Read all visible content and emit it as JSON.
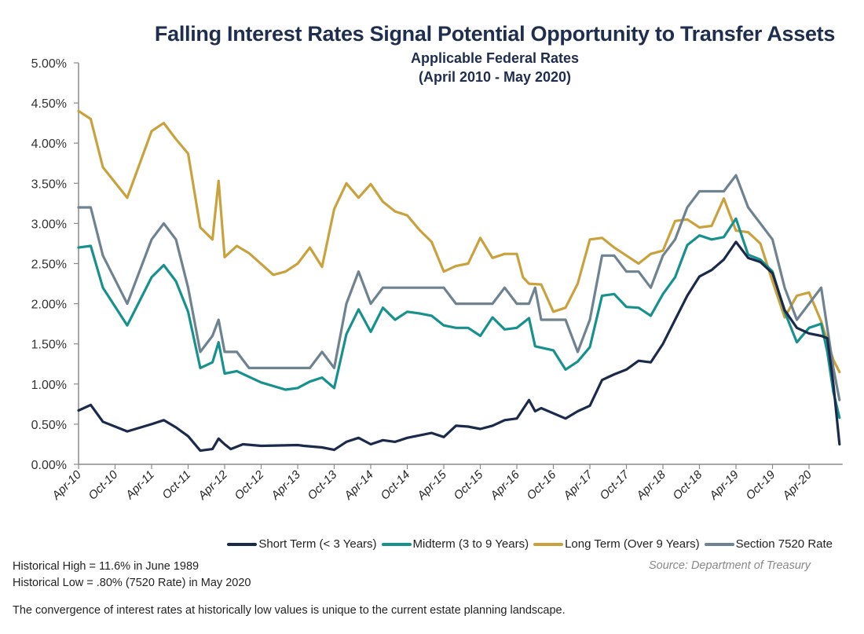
{
  "header": {
    "title": "Falling Interest Rates Signal Potential Opportunity to Transfer Assets",
    "subtitle": "Applicable Federal Rates",
    "date_range": "(April 2010 - May  2020)"
  },
  "notes": {
    "historical_high": "Historical High = 11.6% in  June 1989",
    "historical_low": "Historical Low = .80% (7520 Rate) in May 2020",
    "source": "Source: Department of Treasury",
    "footer": "The convergence of interest rates at historically low values is unique to the current estate planning landscape."
  },
  "chart_data": {
    "type": "line",
    "title": "Applicable Federal Rates",
    "xlabel": "",
    "ylabel": "",
    "ylim": [
      0,
      5
    ],
    "yticks": [
      "0.00%",
      "0.50%",
      "1.00%",
      "1.50%",
      "2.00%",
      "2.50%",
      "3.00%",
      "3.50%",
      "4.00%",
      "4.50%",
      "5.00%"
    ],
    "ytick_values": [
      0,
      0.5,
      1,
      1.5,
      2,
      2.5,
      3,
      3.5,
      4,
      4.5,
      5
    ],
    "xticks": [
      "Apr-10",
      "Oct-10",
      "Apr-11",
      "Oct-11",
      "Apr-12",
      "Oct-12",
      "Apr-13",
      "Oct-13",
      "Apr-14",
      "Oct-14",
      "Apr-15",
      "Oct-15",
      "Apr-16",
      "Oct-16",
      "Apr-17",
      "Oct-17",
      "Apr-18",
      "Oct-18",
      "Apr-19",
      "Oct-19",
      "Apr-20"
    ],
    "x_start": "Apr-10",
    "x_unit": "months since Apr-10",
    "grid": false,
    "legend_position": "bottom",
    "series": [
      {
        "name": "Short Term (< 3 Years)",
        "color": "#1b2a4a",
        "points": [
          [
            0,
            0.67
          ],
          [
            2,
            0.74
          ],
          [
            4,
            0.53
          ],
          [
            8,
            0.41
          ],
          [
            12,
            0.5
          ],
          [
            14,
            0.55
          ],
          [
            16,
            0.46
          ],
          [
            18,
            0.35
          ],
          [
            20,
            0.17
          ],
          [
            22,
            0.19
          ],
          [
            23,
            0.32
          ],
          [
            24,
            0.25
          ],
          [
            25,
            0.19
          ],
          [
            27,
            0.25
          ],
          [
            30,
            0.23
          ],
          [
            36,
            0.24
          ],
          [
            37,
            0.23
          ],
          [
            40,
            0.21
          ],
          [
            42,
            0.18
          ],
          [
            44,
            0.28
          ],
          [
            46,
            0.33
          ],
          [
            48,
            0.25
          ],
          [
            50,
            0.3
          ],
          [
            52,
            0.28
          ],
          [
            54,
            0.33
          ],
          [
            58,
            0.39
          ],
          [
            60,
            0.34
          ],
          [
            62,
            0.48
          ],
          [
            64,
            0.47
          ],
          [
            66,
            0.44
          ],
          [
            68,
            0.48
          ],
          [
            70,
            0.55
          ],
          [
            72,
            0.57
          ],
          [
            74,
            0.8
          ],
          [
            75,
            0.66
          ],
          [
            76,
            0.7
          ],
          [
            80,
            0.57
          ],
          [
            82,
            0.66
          ],
          [
            84,
            0.73
          ],
          [
            86,
            1.05
          ],
          [
            88,
            1.12
          ],
          [
            90,
            1.18
          ],
          [
            92,
            1.29
          ],
          [
            94,
            1.27
          ],
          [
            96,
            1.5
          ],
          [
            98,
            1.8
          ],
          [
            100,
            2.1
          ],
          [
            102,
            2.34
          ],
          [
            104,
            2.42
          ],
          [
            106,
            2.55
          ],
          [
            108,
            2.77
          ],
          [
            110,
            2.57
          ],
          [
            112,
            2.52
          ],
          [
            114,
            2.38
          ],
          [
            116,
            1.92
          ],
          [
            118,
            1.7
          ],
          [
            120,
            1.63
          ],
          [
            122,
            1.6
          ],
          [
            123,
            1.57
          ],
          [
            124,
            1.0
          ],
          [
            125,
            0.25
          ]
        ]
      },
      {
        "name": "Midterm (3 to 9 Years)",
        "color": "#17918e",
        "points": [
          [
            0,
            2.7
          ],
          [
            2,
            2.72
          ],
          [
            4,
            2.2
          ],
          [
            8,
            1.73
          ],
          [
            12,
            2.33
          ],
          [
            14,
            2.48
          ],
          [
            16,
            2.28
          ],
          [
            18,
            1.9
          ],
          [
            20,
            1.2
          ],
          [
            22,
            1.27
          ],
          [
            23,
            1.52
          ],
          [
            24,
            1.13
          ],
          [
            26,
            1.16
          ],
          [
            30,
            1.02
          ],
          [
            34,
            0.93
          ],
          [
            36,
            0.95
          ],
          [
            38,
            1.03
          ],
          [
            40,
            1.08
          ],
          [
            42,
            0.95
          ],
          [
            44,
            1.62
          ],
          [
            46,
            1.93
          ],
          [
            48,
            1.65
          ],
          [
            50,
            1.95
          ],
          [
            52,
            1.8
          ],
          [
            54,
            1.9
          ],
          [
            56,
            1.88
          ],
          [
            58,
            1.85
          ],
          [
            60,
            1.73
          ],
          [
            62,
            1.7
          ],
          [
            64,
            1.7
          ],
          [
            66,
            1.6
          ],
          [
            68,
            1.83
          ],
          [
            70,
            1.68
          ],
          [
            72,
            1.7
          ],
          [
            74,
            1.82
          ],
          [
            75,
            1.47
          ],
          [
            78,
            1.42
          ],
          [
            80,
            1.18
          ],
          [
            82,
            1.28
          ],
          [
            84,
            1.46
          ],
          [
            86,
            2.1
          ],
          [
            88,
            2.12
          ],
          [
            90,
            1.96
          ],
          [
            92,
            1.95
          ],
          [
            94,
            1.85
          ],
          [
            96,
            2.12
          ],
          [
            98,
            2.33
          ],
          [
            100,
            2.73
          ],
          [
            102,
            2.85
          ],
          [
            104,
            2.8
          ],
          [
            106,
            2.83
          ],
          [
            108,
            3.06
          ],
          [
            110,
            2.61
          ],
          [
            112,
            2.55
          ],
          [
            114,
            2.4
          ],
          [
            116,
            1.9
          ],
          [
            118,
            1.52
          ],
          [
            120,
            1.7
          ],
          [
            122,
            1.75
          ],
          [
            123,
            1.4
          ],
          [
            124,
            0.9
          ],
          [
            125,
            0.58
          ]
        ]
      },
      {
        "name": "Long Term (Over 9 Years)",
        "color": "#c9a23d",
        "points": [
          [
            0,
            4.4
          ],
          [
            2,
            4.3
          ],
          [
            4,
            3.7
          ],
          [
            8,
            3.32
          ],
          [
            12,
            4.15
          ],
          [
            14,
            4.25
          ],
          [
            16,
            4.05
          ],
          [
            18,
            3.87
          ],
          [
            20,
            2.95
          ],
          [
            22,
            2.8
          ],
          [
            23,
            3.53
          ],
          [
            24,
            2.58
          ],
          [
            26,
            2.72
          ],
          [
            28,
            2.63
          ],
          [
            32,
            2.36
          ],
          [
            34,
            2.4
          ],
          [
            36,
            2.5
          ],
          [
            38,
            2.7
          ],
          [
            40,
            2.46
          ],
          [
            42,
            3.18
          ],
          [
            44,
            3.5
          ],
          [
            46,
            3.32
          ],
          [
            48,
            3.49
          ],
          [
            50,
            3.27
          ],
          [
            52,
            3.15
          ],
          [
            54,
            3.1
          ],
          [
            56,
            2.92
          ],
          [
            58,
            2.77
          ],
          [
            60,
            2.4
          ],
          [
            62,
            2.47
          ],
          [
            64,
            2.5
          ],
          [
            66,
            2.82
          ],
          [
            68,
            2.57
          ],
          [
            70,
            2.62
          ],
          [
            72,
            2.62
          ],
          [
            73,
            2.33
          ],
          [
            74,
            2.25
          ],
          [
            76,
            2.24
          ],
          [
            78,
            1.9
          ],
          [
            80,
            1.95
          ],
          [
            82,
            2.25
          ],
          [
            84,
            2.8
          ],
          [
            86,
            2.82
          ],
          [
            88,
            2.7
          ],
          [
            90,
            2.6
          ],
          [
            92,
            2.5
          ],
          [
            94,
            2.62
          ],
          [
            96,
            2.66
          ],
          [
            98,
            3.03
          ],
          [
            100,
            3.05
          ],
          [
            102,
            2.95
          ],
          [
            104,
            2.97
          ],
          [
            106,
            3.31
          ],
          [
            108,
            2.91
          ],
          [
            110,
            2.89
          ],
          [
            112,
            2.75
          ],
          [
            114,
            2.28
          ],
          [
            116,
            1.83
          ],
          [
            118,
            2.1
          ],
          [
            120,
            2.14
          ],
          [
            122,
            1.78
          ],
          [
            124,
            1.3
          ],
          [
            125,
            1.15
          ]
        ]
      },
      {
        "name": "Section 7520 Rate",
        "color": "#6e8290",
        "points": [
          [
            0,
            3.2
          ],
          [
            2,
            3.2
          ],
          [
            4,
            2.6
          ],
          [
            8,
            2.0
          ],
          [
            12,
            2.8
          ],
          [
            14,
            3.0
          ],
          [
            16,
            2.8
          ],
          [
            18,
            2.2
          ],
          [
            20,
            1.4
          ],
          [
            22,
            1.6
          ],
          [
            23,
            1.8
          ],
          [
            24,
            1.4
          ],
          [
            26,
            1.4
          ],
          [
            28,
            1.2
          ],
          [
            36,
            1.2
          ],
          [
            38,
            1.2
          ],
          [
            40,
            1.4
          ],
          [
            42,
            1.2
          ],
          [
            44,
            2.0
          ],
          [
            46,
            2.4
          ],
          [
            48,
            2.0
          ],
          [
            50,
            2.2
          ],
          [
            60,
            2.2
          ],
          [
            62,
            2.0
          ],
          [
            68,
            2.0
          ],
          [
            70,
            2.2
          ],
          [
            72,
            2.0
          ],
          [
            74,
            2.0
          ],
          [
            75,
            2.2
          ],
          [
            76,
            1.8
          ],
          [
            80,
            1.8
          ],
          [
            82,
            1.4
          ],
          [
            84,
            1.8
          ],
          [
            86,
            2.6
          ],
          [
            88,
            2.6
          ],
          [
            90,
            2.4
          ],
          [
            92,
            2.4
          ],
          [
            94,
            2.2
          ],
          [
            96,
            2.6
          ],
          [
            98,
            2.8
          ],
          [
            100,
            3.2
          ],
          [
            102,
            3.4
          ],
          [
            104,
            3.4
          ],
          [
            106,
            3.4
          ],
          [
            108,
            3.6
          ],
          [
            110,
            3.2
          ],
          [
            112,
            3.0
          ],
          [
            114,
            2.8
          ],
          [
            116,
            2.2
          ],
          [
            118,
            1.8
          ],
          [
            120,
            2.0
          ],
          [
            122,
            2.2
          ],
          [
            124,
            1.2
          ],
          [
            125,
            0.8
          ]
        ]
      }
    ]
  }
}
